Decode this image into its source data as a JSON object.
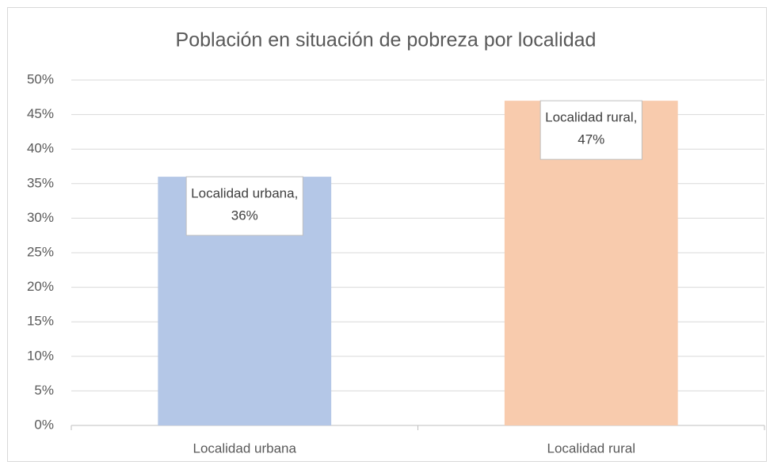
{
  "chart_data": {
    "type": "bar",
    "title": "Población en situación de pobreza por localidad",
    "categories": [
      "Localidad urbana",
      "Localidad rural"
    ],
    "values": [
      36,
      47
    ],
    "value_labels": [
      [
        "Localidad urbana,",
        "36%"
      ],
      [
        "Localidad rural,",
        "47%"
      ]
    ],
    "colors": [
      "#b4c7e7",
      "#f8cbad"
    ],
    "ylim": [
      0,
      50
    ],
    "yticks": [
      {
        "value": 0,
        "label": "0%"
      },
      {
        "value": 5,
        "label": "5%"
      },
      {
        "value": 10,
        "label": "10%"
      },
      {
        "value": 15,
        "label": "15%"
      },
      {
        "value": 20,
        "label": "20%"
      },
      {
        "value": 25,
        "label": "25%"
      },
      {
        "value": 30,
        "label": "30%"
      },
      {
        "value": 35,
        "label": "35%"
      },
      {
        "value": 40,
        "label": "40%"
      },
      {
        "value": 45,
        "label": "45%"
      },
      {
        "value": 50,
        "label": "50%"
      }
    ],
    "grid": true
  }
}
